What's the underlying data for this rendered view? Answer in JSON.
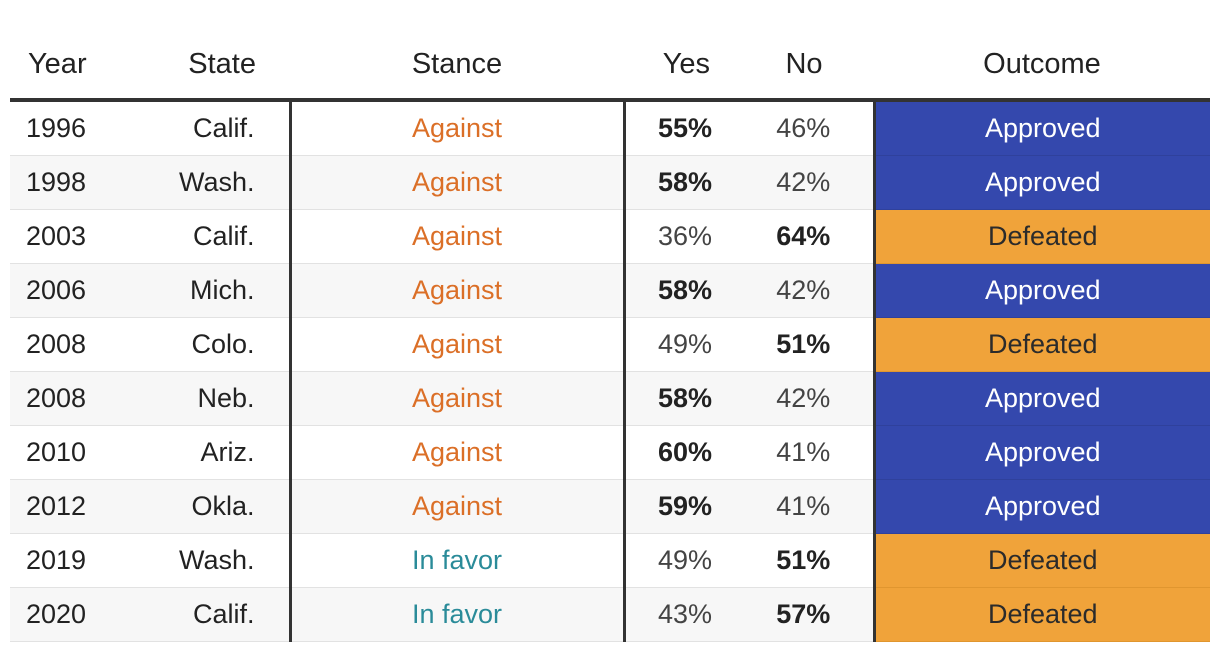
{
  "chart_data": {
    "type": "table",
    "columns": [
      "Year",
      "State",
      "Stance",
      "Yes",
      "No",
      "Outcome"
    ],
    "rows": [
      {
        "year": "1996",
        "state": "Calif.",
        "stance": "Against",
        "yes": "55%",
        "no": "46%",
        "outcome": "Approved"
      },
      {
        "year": "1998",
        "state": "Wash.",
        "stance": "Against",
        "yes": "58%",
        "no": "42%",
        "outcome": "Approved"
      },
      {
        "year": "2003",
        "state": "Calif.",
        "stance": "Against",
        "yes": "36%",
        "no": "64%",
        "outcome": "Defeated"
      },
      {
        "year": "2006",
        "state": "Mich.",
        "stance": "Against",
        "yes": "58%",
        "no": "42%",
        "outcome": "Approved"
      },
      {
        "year": "2008",
        "state": "Colo.",
        "stance": "Against",
        "yes": "49%",
        "no": "51%",
        "outcome": "Defeated"
      },
      {
        "year": "2008",
        "state": "Neb.",
        "stance": "Against",
        "yes": "58%",
        "no": "42%",
        "outcome": "Approved"
      },
      {
        "year": "2010",
        "state": "Ariz.",
        "stance": "Against",
        "yes": "60%",
        "no": "41%",
        "outcome": "Approved"
      },
      {
        "year": "2012",
        "state": "Okla.",
        "stance": "Against",
        "yes": "59%",
        "no": "41%",
        "outcome": "Approved"
      },
      {
        "year": "2019",
        "state": "Wash.",
        "stance": "In favor",
        "yes": "49%",
        "no": "51%",
        "outcome": "Defeated"
      },
      {
        "year": "2020",
        "state": "Calif.",
        "stance": "In favor",
        "yes": "43%",
        "no": "57%",
        "outcome": "Defeated"
      }
    ],
    "colors": {
      "against": "#db6f27",
      "in_favor": "#2a8b99",
      "approved": "#3448ad",
      "defeated": "#f0a33a"
    }
  }
}
